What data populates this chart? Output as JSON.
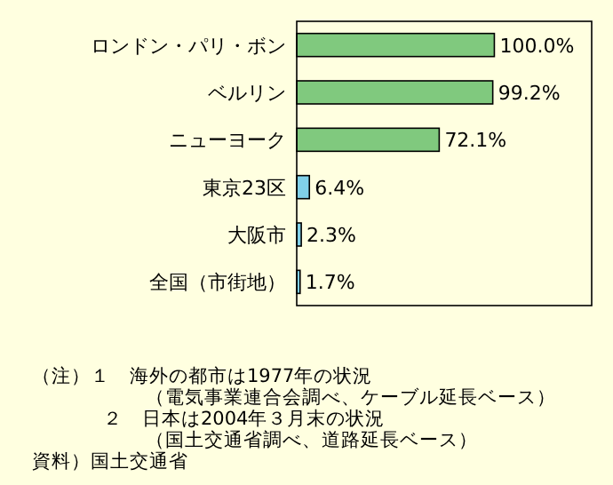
{
  "chart_data": {
    "type": "bar",
    "orientation": "horizontal",
    "value_labels": [
      "100.0%",
      "99.2%",
      "72.1%",
      "6.4%",
      "2.3%",
      "1.7%"
    ],
    "categories": [
      "ロンドン・パリ・ボン",
      "ベルリン",
      "ニューヨーク",
      "東京23区",
      "大阪市",
      "全国（市街地）"
    ],
    "values": [
      100.0,
      99.2,
      72.1,
      6.4,
      2.3,
      1.7
    ],
    "colors": [
      "#80c97e",
      "#80c97e",
      "#80c97e",
      "#80d0e8",
      "#80d0e8",
      "#80d0e8"
    ],
    "annotations": [
      "（注）１　海外の都市は1977年の状況",
      "（電気事業連合会調べ、ケーブル延長ベース）",
      "２　日本は2004年３月末の状況",
      "（国土交通省調べ、道路延長ベース）",
      "資料）国土交通省"
    ]
  }
}
